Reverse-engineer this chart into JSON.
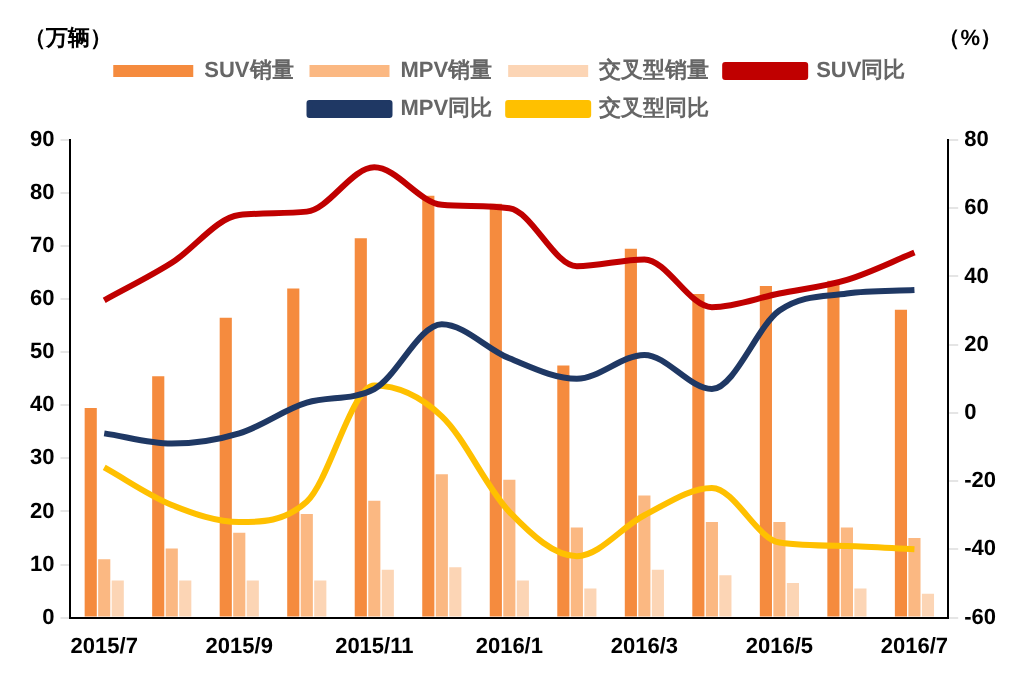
{
  "chart_data": {
    "type": "bar",
    "ylabel": "（万辆）",
    "y2label": "（%）",
    "categories": [
      "2015/7",
      null,
      "2015/9",
      null,
      "2015/11",
      null,
      "2016/1",
      null,
      "2016/3",
      null,
      "2016/5",
      null,
      "2016/7"
    ],
    "series": [
      {
        "name": "SUV销量",
        "color": "#f58b3e",
        "values": [
          39.5,
          45.5,
          56.5,
          62,
          71.5,
          79.5,
          78,
          47.5,
          69.5,
          61,
          62.5,
          63.5,
          58
        ]
      },
      {
        "name": "MPV销量",
        "color": "#fbb882",
        "values": [
          11,
          13,
          16,
          19.5,
          22,
          27,
          26,
          17,
          23,
          18,
          18,
          17,
          15
        ]
      },
      {
        "name": "交叉型销量",
        "color": "#fcd5b5",
        "values": [
          7,
          7,
          7,
          7,
          9,
          9.5,
          7,
          5.5,
          9,
          8,
          6.5,
          5.5,
          4.5
        ]
      },
      {
        "name": "SUV同比",
        "type": "line",
        "axis": "y2",
        "color": "#c00000",
        "values": [
          33,
          44,
          58,
          59,
          72,
          61,
          60,
          43,
          45,
          31,
          35,
          39,
          47
        ]
      },
      {
        "name": "MPV同比",
        "type": "line",
        "axis": "y2",
        "color": "#1f3864",
        "values": [
          -6,
          -9,
          -6,
          3,
          7,
          26,
          16,
          10,
          17,
          7,
          30,
          35,
          36
        ]
      },
      {
        "name": "交叉型同比",
        "type": "line",
        "axis": "y2",
        "color": "#ffc000",
        "values": [
          -16,
          -27,
          -32,
          -26,
          8,
          -1,
          -29,
          -42,
          -30,
          -22,
          -38,
          -39,
          -40
        ]
      }
    ],
    "ylim": [
      0,
      90
    ],
    "yticks": [
      0,
      10,
      20,
      30,
      40,
      50,
      60,
      70,
      80,
      90
    ],
    "y2lim": [
      -60,
      80
    ],
    "y2ticks": [
      -60,
      -40,
      -20,
      0,
      20,
      40,
      60,
      80
    ],
    "grid": false,
    "legend": "top",
    "marker": "none",
    "line_style": "solid"
  }
}
